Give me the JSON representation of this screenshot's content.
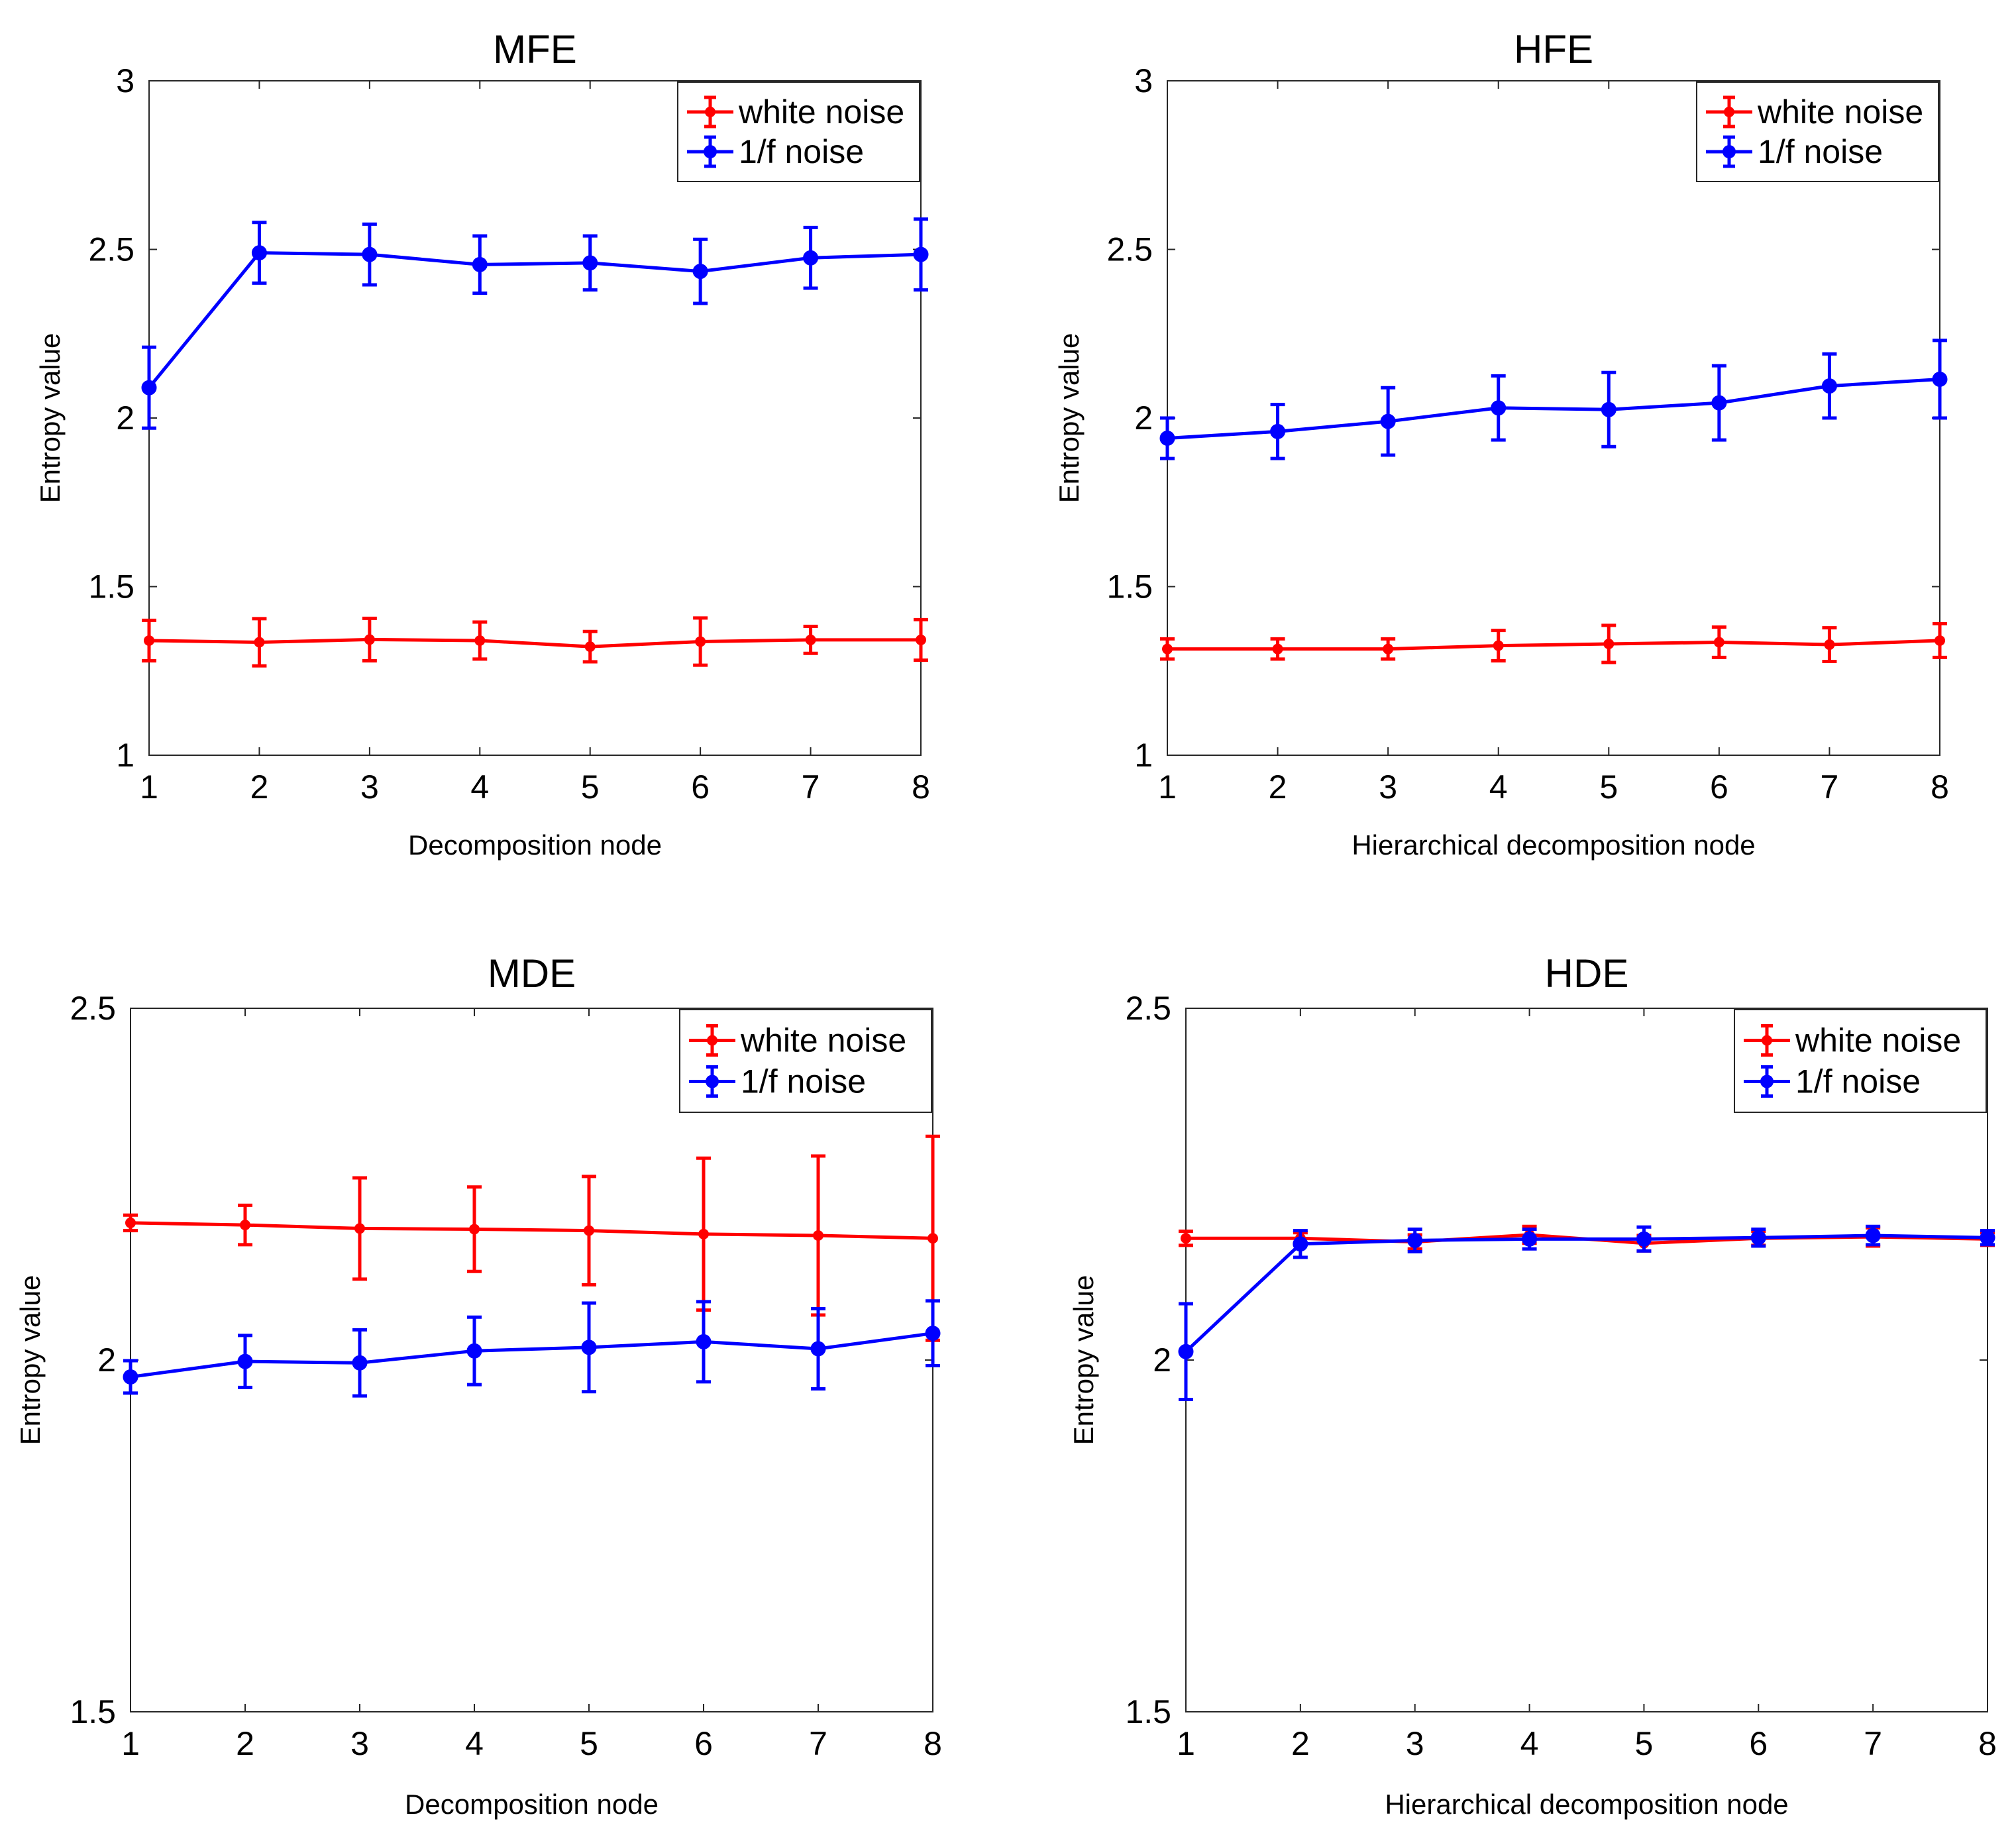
{
  "chart_data": [
    {
      "type": "line",
      "title": "MFE",
      "xlabel": "Decomposition node",
      "ylabel": "Entropy value",
      "xlim": [
        1,
        8
      ],
      "ylim": [
        1,
        3
      ],
      "xticks": [
        "1",
        "2",
        "3",
        "4",
        "5",
        "6",
        "7",
        "8"
      ],
      "yticks": [
        "1",
        "1.5",
        "2",
        "2.5",
        "3"
      ],
      "legend": "top-right",
      "x": [
        1,
        2,
        3,
        4,
        5,
        6,
        7,
        8
      ],
      "series": [
        {
          "name": "white noise",
          "color": "#ff0000",
          "marker": "dot",
          "values": [
            1.34,
            1.335,
            1.343,
            1.34,
            1.322,
            1.337,
            1.342,
            1.342
          ],
          "errors": [
            0.06,
            0.07,
            0.063,
            0.055,
            0.045,
            0.07,
            0.04,
            0.06
          ]
        },
        {
          "name": "1/f noise",
          "color": "#0000ff",
          "marker": "circle",
          "values": [
            2.09,
            2.49,
            2.485,
            2.455,
            2.46,
            2.435,
            2.475,
            2.485
          ],
          "errors": [
            0.12,
            0.09,
            0.09,
            0.085,
            0.08,
            0.095,
            0.09,
            0.105
          ]
        }
      ]
    },
    {
      "type": "line",
      "title": "HFE",
      "xlabel": "Hierarchical decomposition node",
      "ylabel": "Entropy value",
      "xlim": [
        1,
        8
      ],
      "ylim": [
        1,
        3
      ],
      "xticks": [
        "1",
        "2",
        "3",
        "4",
        "5",
        "6",
        "7",
        "8"
      ],
      "yticks": [
        "1",
        "1.5",
        "2",
        "2.5",
        "3"
      ],
      "legend": "top-right",
      "x": [
        1,
        2,
        3,
        4,
        5,
        6,
        7,
        8
      ],
      "series": [
        {
          "name": "white noise",
          "color": "#ff0000",
          "marker": "dot",
          "values": [
            1.315,
            1.315,
            1.315,
            1.325,
            1.33,
            1.335,
            1.328,
            1.34
          ],
          "errors": [
            0.03,
            0.03,
            0.03,
            0.045,
            0.055,
            0.045,
            0.05,
            0.05
          ]
        },
        {
          "name": "1/f noise",
          "color": "#0000ff",
          "marker": "circle",
          "values": [
            1.94,
            1.96,
            1.99,
            2.03,
            2.025,
            2.045,
            2.095,
            2.115
          ],
          "errors": [
            0.06,
            0.08,
            0.1,
            0.095,
            0.11,
            0.11,
            0.095,
            0.115
          ]
        }
      ]
    },
    {
      "type": "line",
      "title": "MDE",
      "xlabel": "Decomposition node",
      "ylabel": "Entropy value",
      "xlim": [
        1,
        8
      ],
      "ylim": [
        1.5,
        2.5
      ],
      "xticks": [
        "1",
        "2",
        "3",
        "4",
        "5",
        "6",
        "7",
        "8"
      ],
      "yticks": [
        "1.5",
        "2",
        "2.5"
      ],
      "legend": "top-right",
      "x": [
        1,
        2,
        3,
        4,
        5,
        6,
        7,
        8
      ],
      "series": [
        {
          "name": "white noise",
          "color": "#ff0000",
          "marker": "dot",
          "values": [
            2.195,
            2.192,
            2.187,
            2.186,
            2.184,
            2.179,
            2.177,
            2.173
          ],
          "errors": [
            0.011,
            0.028,
            0.072,
            0.06,
            0.077,
            0.108,
            0.113,
            0.145
          ]
        },
        {
          "name": "1/f noise",
          "color": "#0000ff",
          "marker": "circle",
          "values": [
            1.976,
            1.998,
            1.996,
            2.013,
            2.018,
            2.026,
            2.016,
            2.038
          ],
          "errors": [
            0.023,
            0.037,
            0.047,
            0.048,
            0.063,
            0.057,
            0.057,
            0.046
          ]
        }
      ]
    },
    {
      "type": "line",
      "title": "HDE",
      "xlabel": "Hierarchical decomposition node",
      "ylabel": "Entropy value",
      "xlim": [
        1,
        8
      ],
      "ylim": [
        1.5,
        2.5
      ],
      "xticks": [
        "1",
        "2",
        "3",
        "4",
        "5",
        "6",
        "7",
        "8"
      ],
      "yticks": [
        "1.5",
        "2",
        "2.5"
      ],
      "legend": "top-right",
      "x": [
        1,
        2,
        3,
        4,
        5,
        6,
        7,
        8
      ],
      "series": [
        {
          "name": "white noise",
          "color": "#ff0000",
          "marker": "dot",
          "values": [
            2.173,
            2.173,
            2.168,
            2.178,
            2.166,
            2.173,
            2.175,
            2.172
          ],
          "errors": [
            0.01,
            0.008,
            0.01,
            0.012,
            0.011,
            0.01,
            0.013,
            0.009
          ]
        },
        {
          "name": "1/f noise",
          "color": "#0000ff",
          "marker": "circle",
          "values": [
            2.012,
            2.165,
            2.17,
            2.172,
            2.172,
            2.174,
            2.177,
            2.174
          ],
          "errors": [
            0.068,
            0.019,
            0.016,
            0.014,
            0.017,
            0.012,
            0.013,
            0.01
          ]
        }
      ]
    }
  ]
}
